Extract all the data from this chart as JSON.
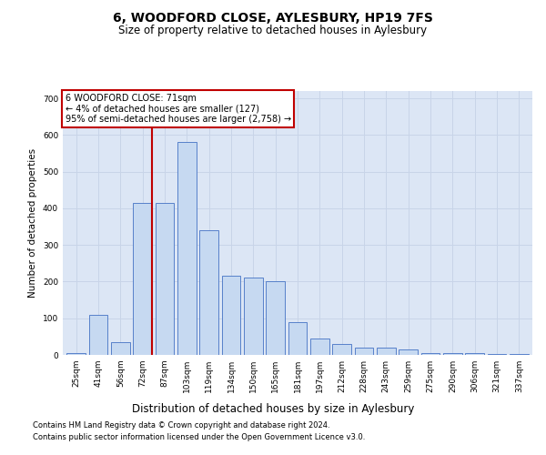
{
  "title": "6, WOODFORD CLOSE, AYLESBURY, HP19 7FS",
  "subtitle": "Size of property relative to detached houses in Aylesbury",
  "xlabel": "Distribution of detached houses by size in Aylesbury",
  "ylabel": "Number of detached properties",
  "bins": [
    "25sqm",
    "41sqm",
    "56sqm",
    "72sqm",
    "87sqm",
    "103sqm",
    "119sqm",
    "134sqm",
    "150sqm",
    "165sqm",
    "181sqm",
    "197sqm",
    "212sqm",
    "228sqm",
    "243sqm",
    "259sqm",
    "275sqm",
    "290sqm",
    "306sqm",
    "321sqm",
    "337sqm"
  ],
  "values": [
    5,
    110,
    35,
    415,
    415,
    580,
    340,
    215,
    210,
    200,
    90,
    45,
    30,
    20,
    20,
    15,
    5,
    5,
    5,
    2,
    2
  ],
  "bar_color": "#c6d9f1",
  "bar_edge_color": "#4472c4",
  "vline_x_index": 3,
  "vline_color": "#c00000",
  "annotation_text": "6 WOODFORD CLOSE: 71sqm\n← 4% of detached houses are smaller (127)\n95% of semi-detached houses are larger (2,758) →",
  "annotation_box_color": "#ffffff",
  "annotation_box_edge_color": "#c00000",
  "footer1": "Contains HM Land Registry data © Crown copyright and database right 2024.",
  "footer2": "Contains public sector information licensed under the Open Government Licence v3.0.",
  "ylim": [
    0,
    720
  ],
  "background_color": "#dce6f5",
  "title_fontsize": 10,
  "subtitle_fontsize": 8.5,
  "xlabel_fontsize": 8.5,
  "ylabel_fontsize": 7.5,
  "tick_fontsize": 6.5,
  "annotation_fontsize": 7,
  "footer_fontsize": 6
}
